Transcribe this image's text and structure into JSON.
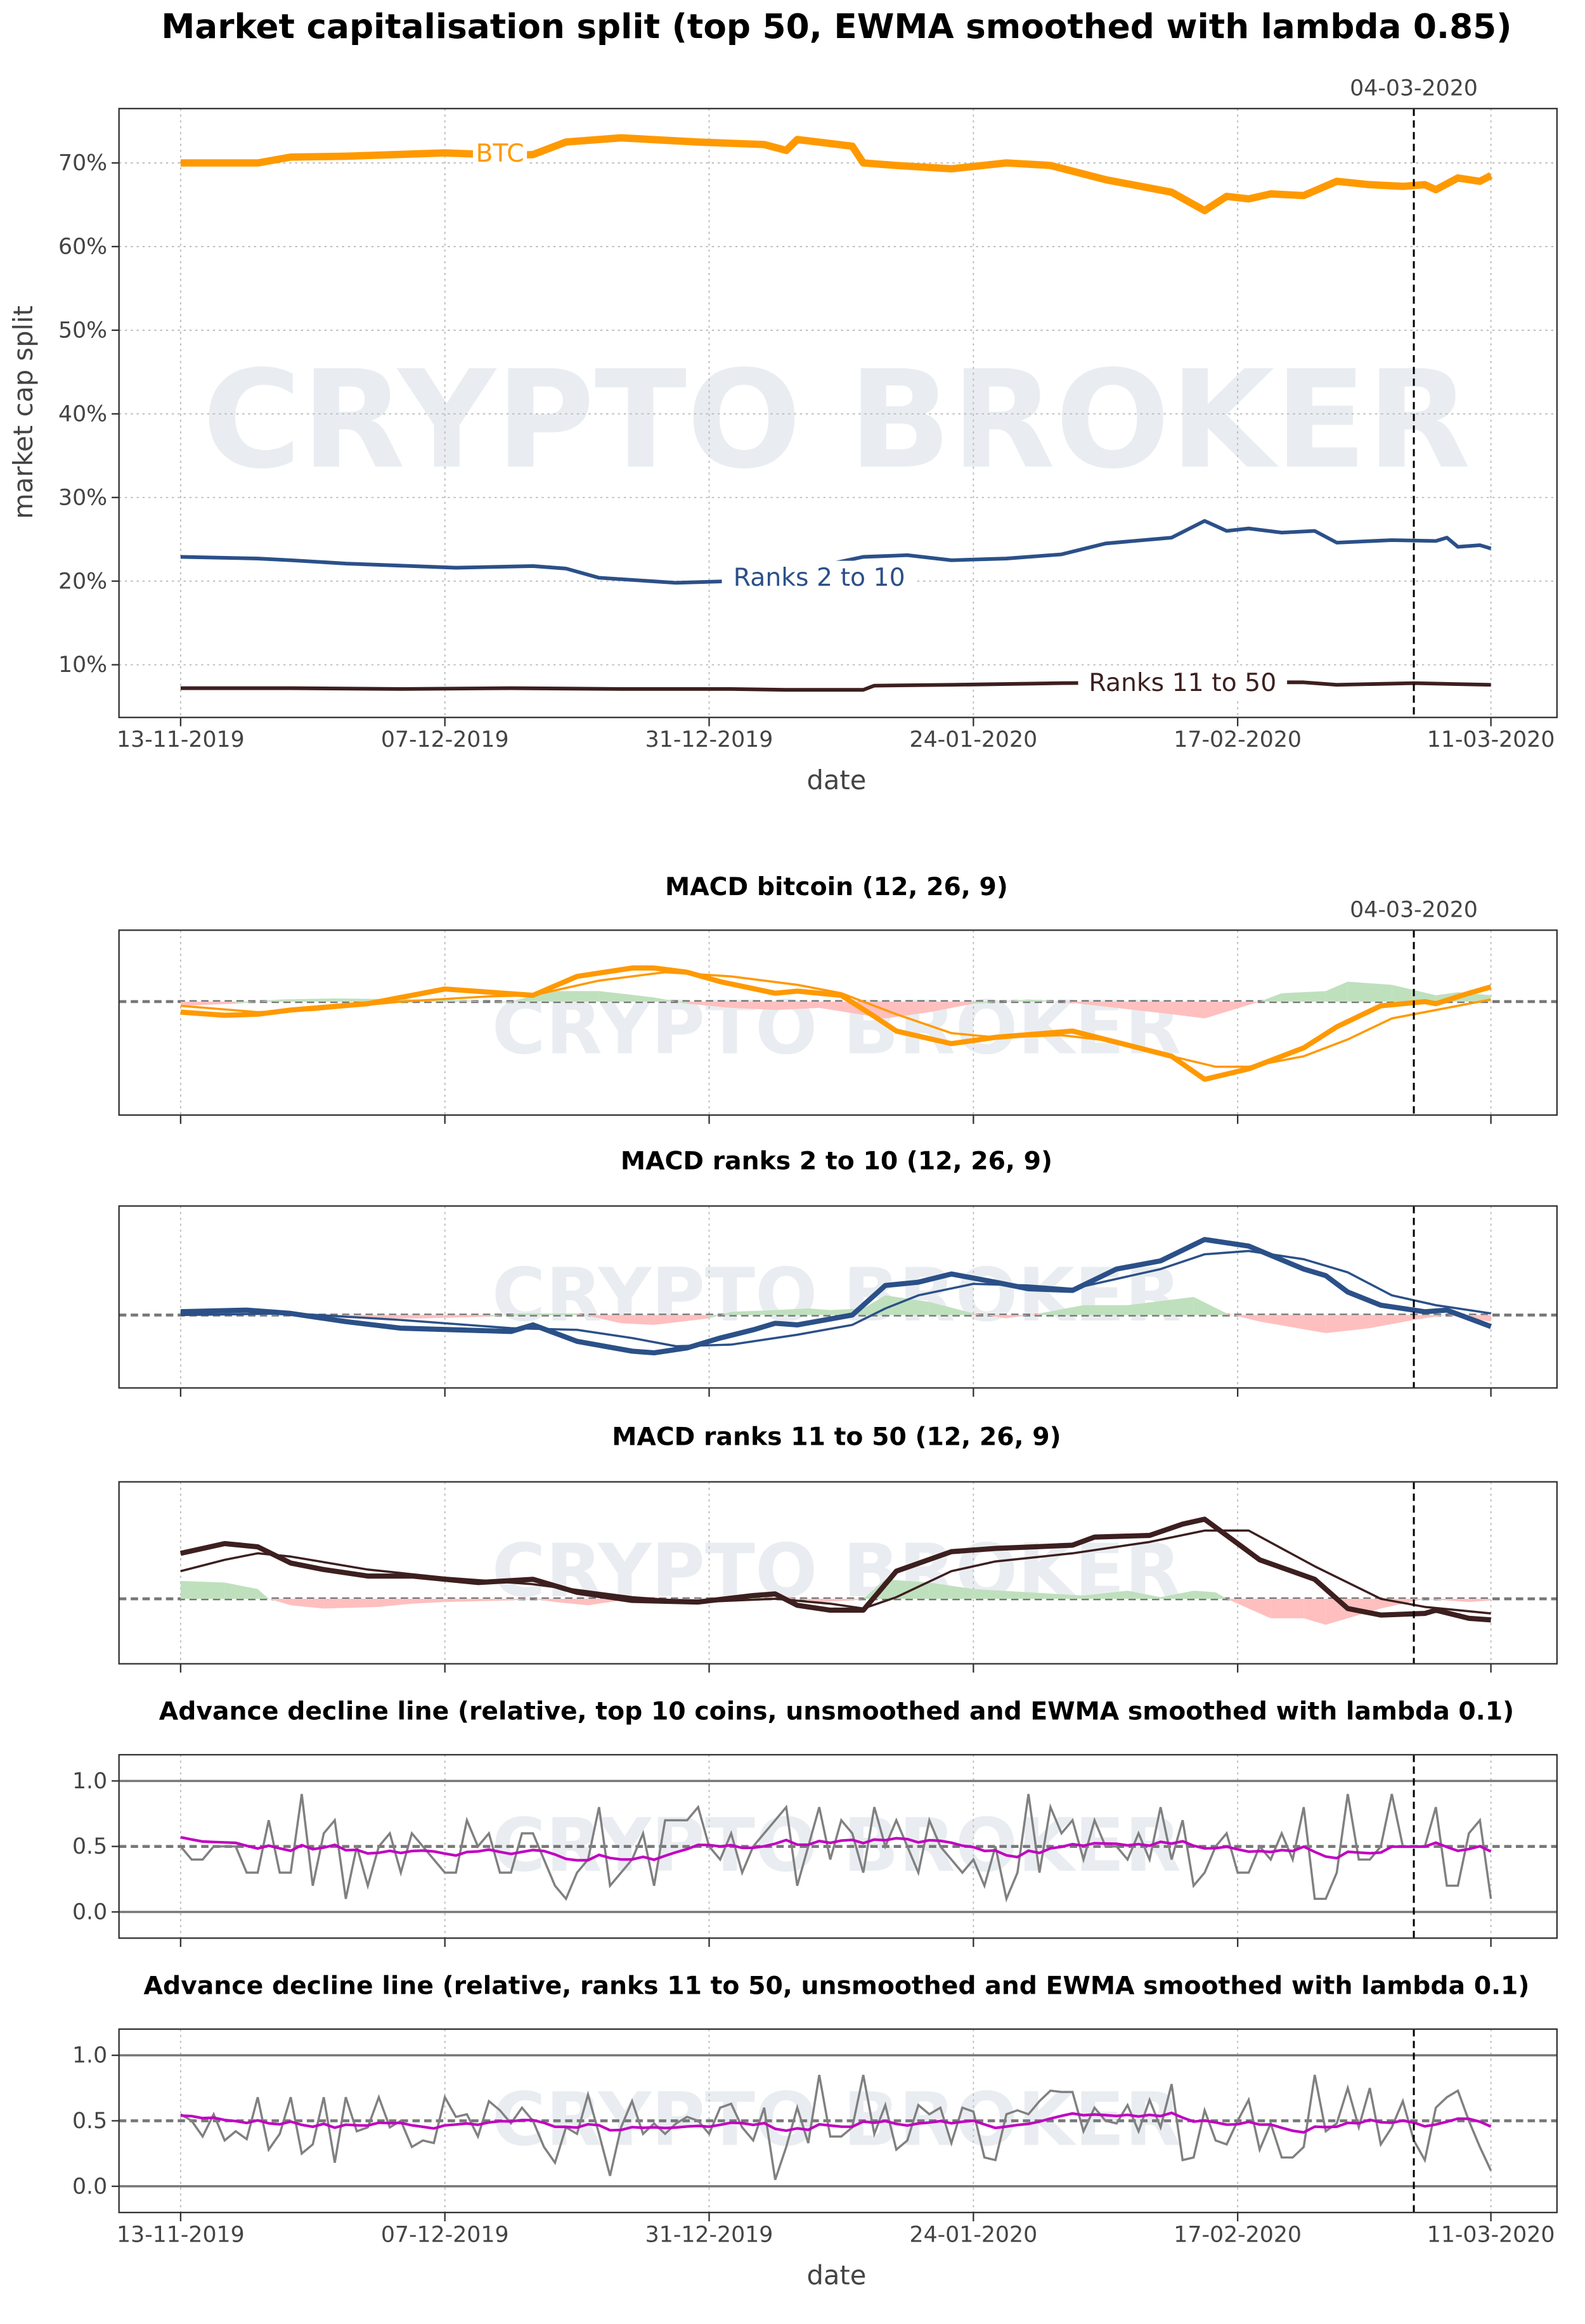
{
  "title": "Market capitalisation split (top 50, EWMA smoothed with lambda 0.85)",
  "watermark": "CRYPTO BROKER",
  "x_start_date": "13-11-2019",
  "xtick_labels": [
    "13-11-2019",
    "07-12-2019",
    "31-12-2019",
    "24-01-2020",
    "17-02-2020",
    "11-03-2020"
  ],
  "xtick_days": [
    0,
    24,
    48,
    72,
    96,
    119
  ],
  "marker": {
    "day": 112,
    "label": "04-03-2020"
  },
  "xlabel": "date",
  "colors": {
    "btc": "#ff9900",
    "ranks_2_10": "#2b5088",
    "ranks_11_50": "#3d1f1f",
    "hist_pos": "#bfe0bd",
    "hist_neg": "#ffbfbf",
    "raw": "#808080",
    "ewma": "#c000c0",
    "zero": "#777777"
  },
  "chart_data": [
    {
      "type": "line",
      "title": "",
      "ylabel": "market cap split",
      "xlabel": "date",
      "ylim": [
        3.7,
        76.5
      ],
      "yticks": [
        10,
        20,
        30,
        40,
        50,
        60,
        70
      ],
      "ytick_labels": [
        "10%",
        "20%",
        "30%",
        "40%",
        "50%",
        "60%",
        "70%"
      ],
      "grid": true,
      "series": [
        {
          "name": "BTC",
          "label": "BTC",
          "label_day": 29,
          "label_value": 71.2,
          "color_key": "btc",
          "width": 5,
          "days": [
            0,
            7,
            10,
            15,
            24,
            30,
            32,
            35,
            40,
            47,
            53,
            55,
            56,
            61,
            62,
            65,
            70,
            75,
            79,
            84,
            90,
            93,
            95,
            97,
            99,
            102,
            105,
            108,
            111,
            113,
            114,
            116,
            118,
            119
          ],
          "values": [
            70,
            70,
            70.7,
            70.8,
            71.2,
            70.9,
            71,
            72.5,
            73,
            72.5,
            72.2,
            71.5,
            72.8,
            72,
            70,
            69.7,
            69.3,
            70,
            69.7,
            68,
            66.5,
            64.3,
            66,
            65.7,
            66.3,
            66.1,
            67.8,
            67.4,
            67.2,
            67.4,
            66.8,
            68.2,
            67.8,
            68.5
          ]
        },
        {
          "name": "Ranks 2 to 10",
          "label": "Ranks 2 to 10",
          "label_day": 58,
          "label_value": 20.5,
          "color_key": "ranks_2_10",
          "width": 2.5,
          "days": [
            0,
            7,
            10,
            15,
            25,
            32,
            35,
            38,
            45,
            50,
            53,
            62,
            66,
            70,
            75,
            80,
            84,
            90,
            93,
            95,
            97,
            100,
            103,
            105,
            110,
            114,
            115,
            116,
            118,
            119
          ],
          "values": [
            22.9,
            22.7,
            22.5,
            22.1,
            21.6,
            21.8,
            21.5,
            20.4,
            19.8,
            20,
            20.4,
            22.9,
            23.1,
            22.5,
            22.7,
            23.2,
            24.5,
            25.2,
            27.2,
            26,
            26.3,
            25.8,
            26,
            24.6,
            24.9,
            24.8,
            25.2,
            24.1,
            24.3,
            23.9
          ]
        },
        {
          "name": "Ranks 11 to 50",
          "label": "Ranks 11 to 50",
          "label_day": 91,
          "label_value": 7.9,
          "color_key": "ranks_11_50",
          "width": 2.5,
          "days": [
            0,
            10,
            20,
            30,
            40,
            50,
            55,
            62,
            63,
            70,
            80,
            90,
            102,
            105,
            112,
            119
          ],
          "values": [
            7.2,
            7.2,
            7.1,
            7.2,
            7.1,
            7.1,
            7.0,
            7.0,
            7.5,
            7.6,
            7.8,
            7.9,
            7.9,
            7.6,
            7.8,
            7.6
          ]
        }
      ]
    },
    {
      "type": "line",
      "title": "MACD bitcoin (12, 26, 9)",
      "ylim": [
        -5.4,
        3.4
      ],
      "series": [
        {
          "name": "MACD",
          "color_key": "btc",
          "width": 3.5,
          "days": [
            0,
            4,
            7,
            10,
            17,
            24,
            32,
            36,
            41,
            43,
            46,
            49,
            54,
            56,
            60,
            63,
            65,
            70,
            74,
            81,
            84,
            90,
            93,
            97,
            102,
            105,
            109,
            113,
            114,
            117,
            119
          ],
          "values": [
            -0.5,
            -0.65,
            -0.6,
            -0.4,
            -0.1,
            0.6,
            0.3,
            1.2,
            1.6,
            1.6,
            1.4,
            0.95,
            0.4,
            0.5,
            0.3,
            -0.7,
            -1.4,
            -2.0,
            -1.7,
            -1.4,
            -1.8,
            -2.6,
            -3.7,
            -3.2,
            -2.2,
            -1.2,
            -0.2,
            0,
            -0.1,
            0.4,
            0.7
          ]
        },
        {
          "name": "Signal",
          "color_key": "btc",
          "width": 1.5,
          "days": [
            0,
            7,
            12,
            20,
            28,
            32,
            38,
            44,
            50,
            56,
            60,
            65,
            70,
            74,
            80,
            85,
            90,
            94,
            97,
            102,
            106,
            110,
            114,
            119
          ],
          "values": [
            -0.2,
            -0.5,
            -0.4,
            0,
            0.25,
            0.3,
            1.0,
            1.4,
            1.2,
            0.8,
            0.4,
            -0.6,
            -1.5,
            -1.7,
            -1.6,
            -1.9,
            -2.6,
            -3.1,
            -3.1,
            -2.6,
            -1.8,
            -0.8,
            -0.4,
            0.1
          ]
        }
      ],
      "histogram": {
        "days": [
          0,
          5,
          9,
          14,
          22,
          26,
          30,
          33,
          38,
          43,
          46,
          50,
          54,
          58,
          64,
          68,
          72,
          77,
          80,
          85,
          90,
          93,
          98,
          100,
          104,
          106,
          110,
          114,
          116,
          119
        ],
        "values": [
          -0.2,
          -0.1,
          0.1,
          0.15,
          0.1,
          0.05,
          -0.05,
          0.5,
          0.5,
          0.2,
          -0.1,
          -0.3,
          -0.4,
          -0.3,
          -0.8,
          -0.5,
          -0.1,
          0.1,
          0,
          -0.3,
          -0.6,
          -0.8,
          0,
          0.4,
          0.5,
          0.95,
          0.8,
          0.3,
          0.45,
          0.3
        ]
      }
    },
    {
      "type": "line",
      "title": "MACD ranks 2 to 10 (12, 26, 9)",
      "ylim": [
        -2.22,
        3.32
      ],
      "series": [
        {
          "name": "MACD",
          "color_key": "ranks_2_10",
          "width": 3.5,
          "days": [
            0,
            6,
            10,
            15,
            20,
            30,
            32,
            36,
            41,
            43,
            46,
            49,
            52,
            54,
            56,
            61,
            64,
            67,
            70,
            74,
            77,
            81,
            85,
            89,
            93,
            97,
            102,
            104,
            106,
            109,
            113,
            115,
            117,
            119
          ],
          "values": [
            0.1,
            0.15,
            0.05,
            -0.2,
            -0.4,
            -0.5,
            -0.3,
            -0.8,
            -1.1,
            -1.15,
            -1.0,
            -0.7,
            -0.45,
            -0.25,
            -0.3,
            0.0,
            0.9,
            1.0,
            1.25,
            1.0,
            0.8,
            0.75,
            1.4,
            1.65,
            2.3,
            2.1,
            1.4,
            1.2,
            0.7,
            0.3,
            0.1,
            0.15,
            -0.1,
            -0.35
          ]
        },
        {
          "name": "Signal",
          "color_key": "ranks_2_10",
          "width": 1.5,
          "days": [
            0,
            10,
            20,
            30,
            36,
            41,
            45,
            50,
            56,
            61,
            64,
            67,
            72,
            77,
            81,
            89,
            93,
            97,
            102,
            106,
            110,
            114,
            119
          ],
          "values": [
            0,
            0.05,
            -0.15,
            -0.4,
            -0.45,
            -0.7,
            -0.95,
            -0.9,
            -0.6,
            -0.3,
            0.2,
            0.6,
            0.95,
            0.9,
            0.8,
            1.4,
            1.85,
            1.95,
            1.7,
            1.3,
            0.6,
            0.3,
            0.05
          ]
        }
      ],
      "histogram": {
        "days": [
          0,
          5,
          10,
          15,
          22,
          28,
          31,
          36,
          40,
          43,
          48,
          50,
          54,
          57,
          59,
          62,
          64,
          68,
          72,
          75,
          78,
          82,
          86,
          92,
          95,
          98,
          104,
          108,
          112,
          115,
          119
        ],
        "values": [
          0.1,
          0.2,
          0.05,
          -0.1,
          -0.1,
          -0.05,
          0.05,
          0.05,
          -0.25,
          -0.3,
          -0.1,
          0.1,
          0.15,
          0.2,
          0.15,
          0.2,
          0.6,
          0.4,
          0.05,
          -0.1,
          0.05,
          0.3,
          0.3,
          0.55,
          0.05,
          -0.2,
          -0.55,
          -0.4,
          -0.15,
          0,
          -0.2
        ]
      }
    },
    {
      "type": "line",
      "title": "MACD ranks 11 to 50 (12, 26, 9)",
      "ylim": [
        -2.0,
        3.6
      ],
      "series": [
        {
          "name": "MACD",
          "color_key": "ranks_11_50",
          "width": 3.5,
          "days": [
            0,
            4,
            7,
            10,
            13,
            17,
            21,
            24,
            27,
            32,
            36,
            41,
            47,
            52,
            54,
            56,
            59,
            62,
            65,
            70,
            74,
            81,
            83,
            88,
            91,
            93,
            98,
            103,
            106,
            109,
            113,
            114,
            117,
            119
          ],
          "values": [
            1.4,
            1.7,
            1.6,
            1.1,
            0.9,
            0.7,
            0.7,
            0.6,
            0.5,
            0.6,
            0.2,
            -0.05,
            -0.1,
            0.1,
            0.15,
            -0.2,
            -0.35,
            -0.35,
            0.85,
            1.45,
            1.55,
            1.65,
            1.9,
            1.95,
            2.3,
            2.45,
            1.2,
            0.6,
            -0.3,
            -0.5,
            -0.45,
            -0.35,
            -0.6,
            -0.65
          ]
        },
        {
          "name": "Signal",
          "color_key": "ranks_11_50",
          "width": 1.5,
          "days": [
            0,
            4,
            7,
            10,
            17,
            24,
            32,
            41,
            47,
            54,
            59,
            62,
            65,
            70,
            74,
            81,
            88,
            93,
            97,
            103,
            109,
            113,
            119
          ],
          "values": [
            0.85,
            1.2,
            1.4,
            1.3,
            0.9,
            0.65,
            0.45,
            0.05,
            -0.1,
            0,
            -0.15,
            -0.3,
            0.05,
            0.85,
            1.15,
            1.4,
            1.75,
            2.1,
            2.1,
            1.0,
            0,
            -0.25,
            -0.45
          ]
        }
      ],
      "histogram": {
        "days": [
          0,
          4,
          7,
          8,
          10,
          13,
          18,
          21,
          24,
          30,
          32,
          34,
          37,
          40,
          45,
          50,
          55,
          58,
          61,
          62,
          64,
          68,
          72,
          77,
          82,
          86,
          89,
          92,
          94,
          95,
          97,
          99,
          102,
          104,
          106,
          109,
          113,
          117,
          119
        ],
        "values": [
          0.55,
          0.5,
          0.3,
          0,
          -0.2,
          -0.3,
          -0.25,
          -0.15,
          -0.1,
          -0.05,
          0,
          -0.1,
          -0.2,
          -0.05,
          -0.05,
          0,
          0.05,
          -0.1,
          -0.05,
          0,
          0.6,
          0.5,
          0.3,
          0.2,
          0.1,
          0.25,
          0.05,
          0.25,
          0.2,
          0,
          -0.3,
          -0.6,
          -0.6,
          -0.8,
          -0.6,
          -0.3,
          0,
          -0.1,
          -0.05
        ]
      }
    },
    {
      "type": "line",
      "title": "Advance decline line (relative, top 10 coins, unsmoothed and EWMA smoothed with lambda 0.1)",
      "ylim": [
        -0.2,
        1.2
      ],
      "yticks": [
        0.0,
        0.5,
        1.0
      ],
      "ytick_labels": [
        "0.0",
        "0.5",
        "1.0"
      ],
      "ewma_lambda": 0.1,
      "ewma_start": 0.57,
      "raw": [
        0.5,
        0.4,
        0.4,
        0.5,
        0.5,
        0.5,
        0.3,
        0.3,
        0.7,
        0.3,
        0.3,
        0.9,
        0.2,
        0.6,
        0.7,
        0.1,
        0.5,
        0.2,
        0.5,
        0.6,
        0.3,
        0.6,
        0.5,
        0.4,
        0.3,
        0.3,
        0.7,
        0.5,
        0.6,
        0.3,
        0.3,
        0.6,
        0.6,
        0.4,
        0.2,
        0.1,
        0.3,
        0.4,
        0.8,
        0.2,
        0.3,
        0.4,
        0.6,
        0.2,
        0.7,
        0.7,
        0.7,
        0.8,
        0.5,
        0.4,
        0.6,
        0.3,
        0.5,
        0.6,
        0.7,
        0.8,
        0.2,
        0.5,
        0.8,
        0.4,
        0.7,
        0.6,
        0.3,
        0.8,
        0.5,
        0.7,
        0.5,
        0.3,
        0.7,
        0.5,
        0.4,
        0.3,
        0.4,
        0.2,
        0.5,
        0.1,
        0.3,
        0.9,
        0.3,
        0.8,
        0.6,
        0.7,
        0.4,
        0.7,
        0.5,
        0.5,
        0.4,
        0.6,
        0.4,
        0.8,
        0.4,
        0.7,
        0.2,
        0.3,
        0.5,
        0.6,
        0.3,
        0.3,
        0.5,
        0.4,
        0.6,
        0.4,
        0.8,
        0.1,
        0.1,
        0.3,
        0.9,
        0.4,
        0.4,
        0.5,
        0.9,
        0.5,
        0.5,
        0.5,
        0.8,
        0.2,
        0.2,
        0.6,
        0.7,
        0.1
      ]
    },
    {
      "type": "line",
      "title": "Advance decline line (relative, ranks 11 to 50, unsmoothed and EWMA smoothed with lambda 0.1)",
      "ylim": [
        -0.2,
        1.2
      ],
      "yticks": [
        0.0,
        0.5,
        1.0
      ],
      "ytick_labels": [
        "0.0",
        "0.5",
        "1.0"
      ],
      "ewma_lambda": 0.1,
      "ewma_start": 0.54,
      "raw": [
        0.55,
        0.5,
        0.38,
        0.55,
        0.35,
        0.42,
        0.36,
        0.68,
        0.28,
        0.4,
        0.68,
        0.25,
        0.32,
        0.68,
        0.18,
        0.68,
        0.42,
        0.45,
        0.68,
        0.45,
        0.5,
        0.3,
        0.35,
        0.33,
        0.68,
        0.53,
        0.55,
        0.38,
        0.65,
        0.58,
        0.48,
        0.6,
        0.5,
        0.3,
        0.18,
        0.45,
        0.4,
        0.7,
        0.4,
        0.08,
        0.45,
        0.65,
        0.4,
        0.48,
        0.4,
        0.48,
        0.53,
        0.5,
        0.4,
        0.6,
        0.63,
        0.45,
        0.35,
        0.6,
        0.05,
        0.3,
        0.6,
        0.33,
        0.85,
        0.38,
        0.38,
        0.45,
        0.85,
        0.4,
        0.62,
        0.28,
        0.35,
        0.62,
        0.55,
        0.6,
        0.33,
        0.6,
        0.57,
        0.22,
        0.2,
        0.55,
        0.58,
        0.55,
        0.65,
        0.73,
        0.72,
        0.72,
        0.42,
        0.6,
        0.5,
        0.48,
        0.62,
        0.42,
        0.66,
        0.45,
        0.78,
        0.2,
        0.22,
        0.58,
        0.35,
        0.32,
        0.5,
        0.66,
        0.28,
        0.48,
        0.22,
        0.22,
        0.3,
        0.85,
        0.42,
        0.48,
        0.75,
        0.45,
        0.75,
        0.32,
        0.45,
        0.65,
        0.35,
        0.2,
        0.6,
        0.68,
        0.73,
        0.5,
        0.3,
        0.12
      ]
    }
  ]
}
